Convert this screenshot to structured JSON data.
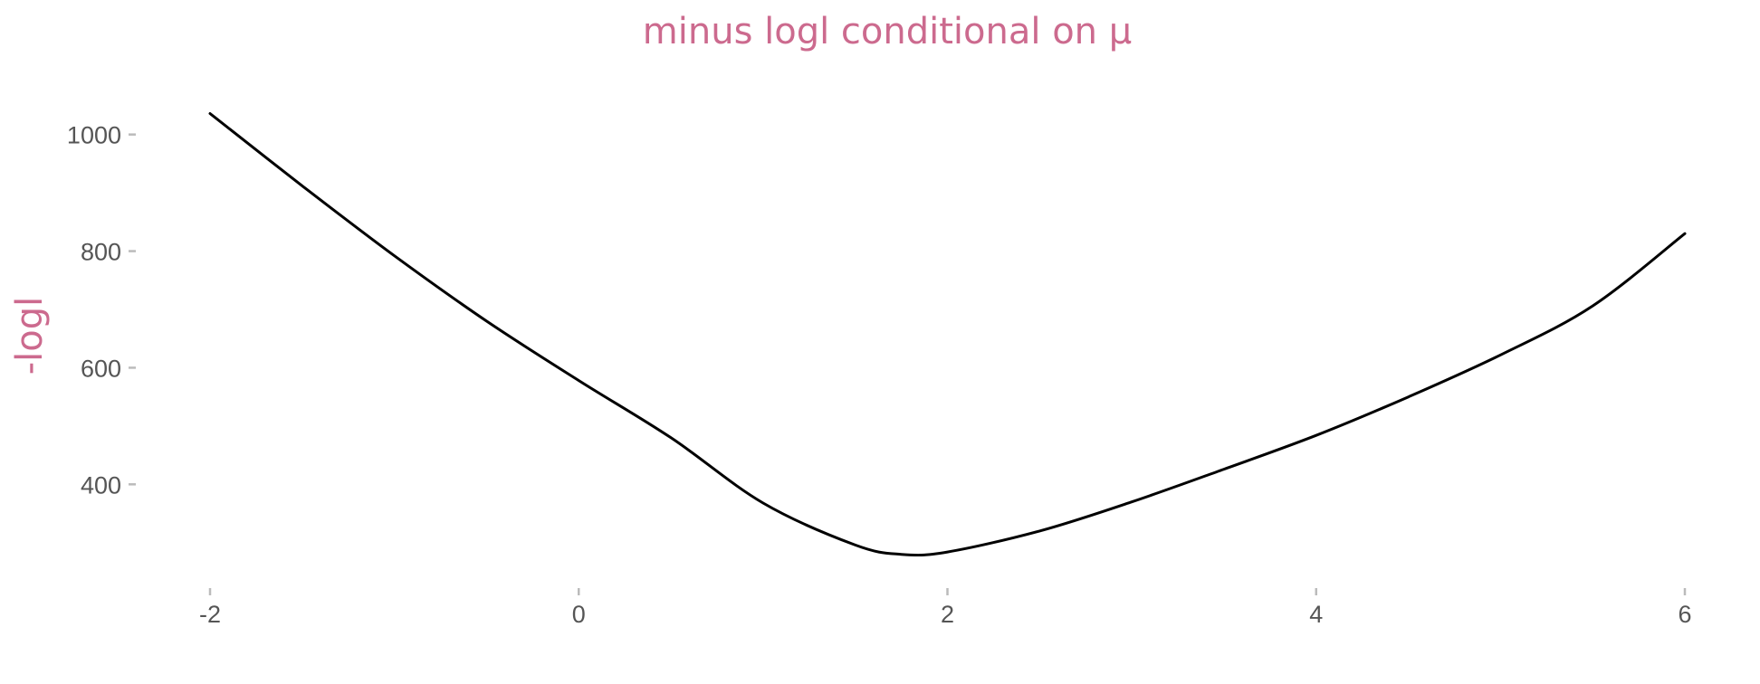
{
  "chart_data": {
    "type": "line",
    "title": "minus logl conditional on μ",
    "xlabel": "",
    "ylabel": "-logl",
    "xlim": [
      -2,
      6
    ],
    "ylim": [
      250,
      1060
    ],
    "x_ticks": [
      "-2",
      "0",
      "2",
      "4",
      "6"
    ],
    "y_ticks": [
      "400",
      "600",
      "800",
      "1000"
    ],
    "grid": false,
    "legend": "none",
    "series": [
      {
        "x": [
          -2,
          -1.5,
          -1,
          -0.5,
          0,
          0.5,
          1,
          1.5,
          1.75,
          2,
          2.5,
          3,
          3.5,
          4,
          4.5,
          5,
          5.5,
          6
        ],
        "y": [
          1036,
          912,
          792,
          680,
          578,
          480,
          368,
          296,
          280,
          284,
          320,
          370,
          426,
          484,
          550,
          622,
          706,
          830
        ]
      }
    ],
    "colors": {
      "title": "#cc6a8e",
      "axis_label": "#cc6a8e",
      "line": "#000000",
      "tick_text": "#555555",
      "tick_mark": "#bbbbbb"
    }
  }
}
